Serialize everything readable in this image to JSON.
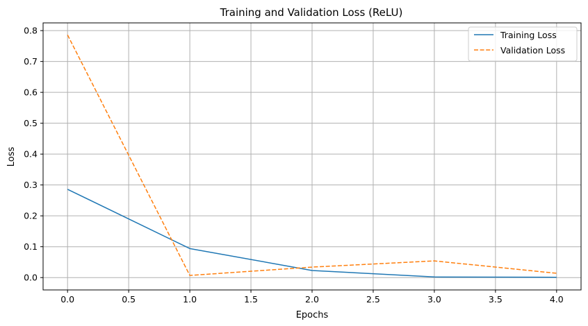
{
  "chart_data": {
    "type": "line",
    "title": "Training and Validation Loss (ReLU)",
    "xlabel": "Epochs",
    "ylabel": "Loss",
    "xlim": [
      -0.2,
      4.2
    ],
    "ylim": [
      -0.04,
      0.825
    ],
    "xticks": [
      0.0,
      0.5,
      1.0,
      1.5,
      2.0,
      2.5,
      3.0,
      3.5,
      4.0
    ],
    "xtick_labels": [
      "0.0",
      "0.5",
      "1.0",
      "1.5",
      "2.0",
      "2.5",
      "3.0",
      "3.5",
      "4.0"
    ],
    "yticks": [
      0.0,
      0.1,
      0.2,
      0.3,
      0.4,
      0.5,
      0.6,
      0.7,
      0.8
    ],
    "ytick_labels": [
      "0.0",
      "0.1",
      "0.2",
      "0.3",
      "0.4",
      "0.5",
      "0.6",
      "0.7",
      "0.8"
    ],
    "grid": true,
    "legend_position": "top-right",
    "x": [
      0,
      1,
      2,
      3,
      4
    ],
    "series": [
      {
        "name": "Training Loss",
        "values": [
          0.286,
          0.094,
          0.023,
          0.002,
          0.001
        ],
        "color": "#1f77b4",
        "style": "solid"
      },
      {
        "name": "Validation Loss",
        "values": [
          0.786,
          0.007,
          0.034,
          0.054,
          0.014
        ],
        "color": "#ff7f0e",
        "style": "dashed"
      }
    ]
  }
}
